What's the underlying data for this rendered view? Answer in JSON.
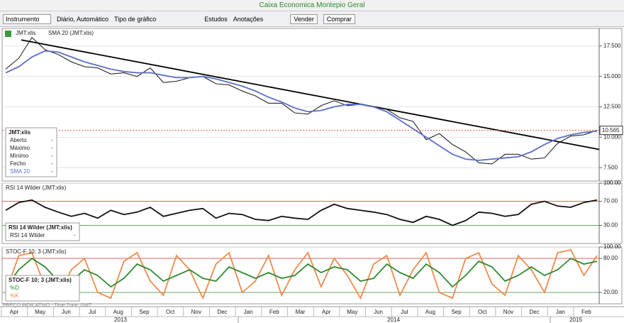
{
  "title": "Caixa Economica Montepio Geral",
  "toolbar": {
    "instrument": "Instrumento",
    "period": "Diário, Automático",
    "chart_type": "Tipo de gráfico",
    "studies": "Estudos",
    "annotations": "Anotações",
    "sell": "Vender",
    "buy": "Comprar"
  },
  "panels": [
    {
      "type": "line",
      "header": [
        "JMT:xlis",
        "SMA 20 (JMT:xlis)"
      ],
      "series": [
        {
          "name": "JMT:xlis",
          "color": "#111111",
          "values": [
            15.6,
            16.5,
            18.2,
            17.2,
            16.8,
            16.2,
            15.8,
            15.7,
            15.2,
            15.3,
            15.0,
            15.7,
            14.5,
            14.6,
            14.9,
            15.0,
            14.4,
            14.3,
            13.8,
            13.4,
            12.8,
            12.8,
            12.0,
            11.9,
            12.6,
            13.0,
            12.6,
            12.7,
            12.5,
            12.3,
            11.6,
            11.3,
            9.8,
            10.3,
            9.4,
            8.8,
            7.9,
            7.8,
            8.6,
            8.6,
            8.2,
            8.3,
            9.5,
            10.1,
            10.2,
            10.565
          ]
        },
        {
          "name": "SMA 20",
          "color": "#5b6ec6",
          "values": [
            15.3,
            15.8,
            16.6,
            17.1,
            17.0,
            16.6,
            16.2,
            15.9,
            15.6,
            15.4,
            15.3,
            15.3,
            15.1,
            14.9,
            14.9,
            15.0,
            14.8,
            14.5,
            14.2,
            13.8,
            13.3,
            12.9,
            12.4,
            12.1,
            12.2,
            12.5,
            12.7,
            12.7,
            12.5,
            12.1,
            11.4,
            10.7,
            10.0,
            9.3,
            8.6,
            8.2,
            8.1,
            8.2,
            8.3,
            8.4,
            8.8,
            9.4,
            9.9,
            10.2,
            10.4,
            10.5
          ]
        }
      ],
      "trendline": [
        18.0,
        9.0
      ],
      "ylim": [
        6.4,
        18.95
      ],
      "yticks": [
        {
          "value": 7.5,
          "label": "7.500"
        },
        {
          "value": 10,
          "label": "10.000"
        },
        {
          "value": 12.5,
          "label": "12.500"
        },
        {
          "value": 15,
          "label": "15.000"
        },
        {
          "value": 17.5,
          "label": "17.500"
        }
      ],
      "legend_title": "JMT:xlis",
      "legend_rows": [
        [
          "Aberto",
          "-"
        ],
        [
          "Máximo",
          "-"
        ],
        [
          "Mínimo",
          "-"
        ],
        [
          "Fecho",
          "-"
        ],
        [
          "SMA 20",
          "-"
        ]
      ]
    },
    {
      "type": "line",
      "header": [
        "RSI 14 Wilder (JMT:xlis)"
      ],
      "series": [
        {
          "name": "RSI 14 Wilder",
          "color": "#111111",
          "values": [
            55,
            68,
            72,
            60,
            52,
            45,
            50,
            42,
            55,
            48,
            52,
            60,
            45,
            50,
            55,
            58,
            42,
            50,
            48,
            40,
            38,
            45,
            42,
            40,
            55,
            65,
            58,
            55,
            52,
            48,
            40,
            35,
            45,
            40,
            30,
            38,
            52,
            50,
            45,
            48,
            65,
            70,
            62,
            60,
            68,
            72
          ]
        }
      ],
      "ylim": [
        0,
        100
      ],
      "yticks": [
        {
          "value": 30,
          "label": "30.00"
        },
        {
          "value": 70,
          "label": "70.00"
        },
        {
          "value": 100,
          "label": "100.00"
        }
      ],
      "legend_title": "RSI 14 Wilder (JMT:xlis)",
      "legend_rows": [
        [
          "RSI 14 Wilder",
          "-"
        ]
      ]
    },
    {
      "type": "line",
      "header": [
        "STOC-F 10; 3 (JMT:xlis)"
      ],
      "series": [
        {
          "name": "%K",
          "color": "#f08a4b",
          "values": [
            20,
            85,
            90,
            30,
            15,
            60,
            80,
            20,
            10,
            75,
            90,
            40,
            15,
            85,
            60,
            10,
            70,
            90,
            20,
            40,
            85,
            15,
            60,
            90,
            30,
            80,
            50,
            10,
            70,
            85,
            15,
            60,
            90,
            20,
            10,
            80,
            90,
            35,
            15,
            85,
            60,
            20,
            90,
            95,
            50,
            85
          ]
        },
        {
          "name": "%D",
          "color": "#2e8b2e",
          "values": [
            30,
            60,
            80,
            65,
            40,
            40,
            60,
            50,
            30,
            45,
            70,
            60,
            40,
            50,
            60,
            45,
            40,
            65,
            55,
            45,
            55,
            45,
            50,
            70,
            55,
            65,
            60,
            40,
            45,
            70,
            55,
            45,
            70,
            55,
            30,
            50,
            75,
            65,
            40,
            50,
            65,
            50,
            60,
            80,
            70,
            75
          ]
        }
      ],
      "ylim": [
        0,
        100
      ],
      "yticks": [
        {
          "value": 20,
          "label": "20.00"
        },
        {
          "value": 80,
          "label": "80.00"
        },
        {
          "value": 100,
          "label": "100.00"
        }
      ],
      "legend_title": "STOC-F 10; 3 (JMT:xlis)",
      "legend_rows": [
        [
          "%D",
          ""
        ],
        [
          "%K",
          ""
        ]
      ]
    }
  ],
  "xaxis": {
    "months": [
      "Apr",
      "May",
      "Jun",
      "Jul",
      "Aug",
      "Sep",
      "Oct",
      "Nov",
      "Dec",
      "Jan",
      "Feb",
      "Mar",
      "Apr",
      "May",
      "Jun",
      "Jul",
      "Aug",
      "Sep",
      "Oct",
      "Nov",
      "Dec",
      "Jan",
      "Feb"
    ],
    "years": [
      "2013",
      "2014",
      "2015"
    ]
  },
  "footer": "PREÇO INDICATIVO - Time Zone: GMT"
}
